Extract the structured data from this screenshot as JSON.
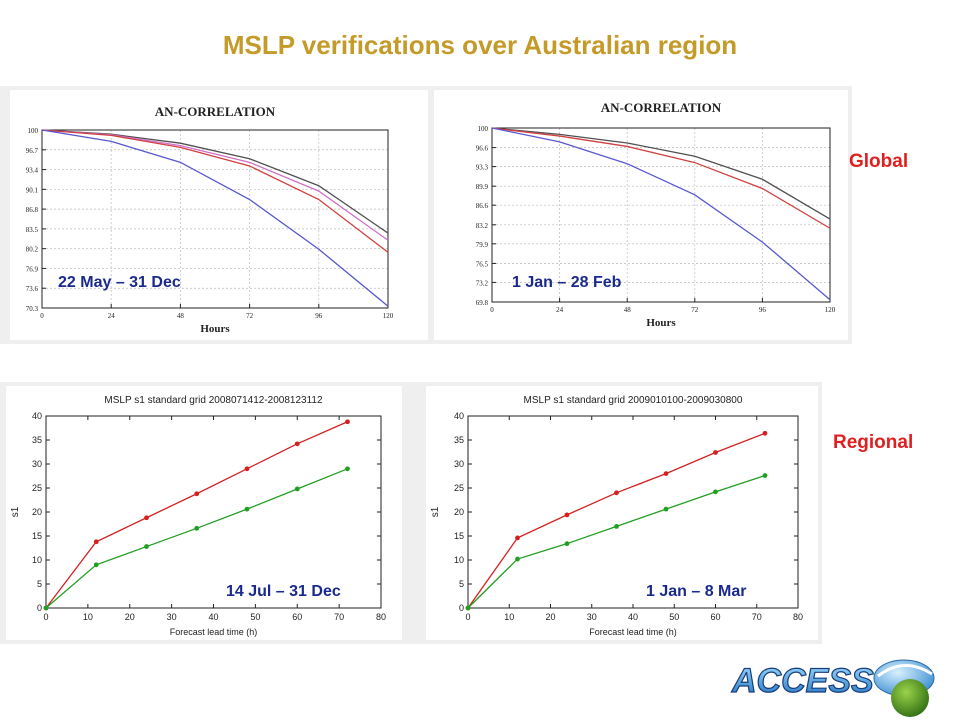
{
  "slide": {
    "title": "MSLP verifications over Australian region",
    "global_label": "Global",
    "regional_label": "Regional",
    "logo_text": "ACCESS"
  },
  "colors": {
    "title": "#c49a28",
    "label": "#e02020",
    "caption": "#1a2a8c",
    "series_black": "#505050",
    "series_red": "#d04040",
    "series_magenta": "#d070c8",
    "series_blue": "#5858d0",
    "series_regional_red": "#d42020",
    "series_regional_green": "#20a020"
  },
  "chart_data": [
    {
      "type": "line",
      "title": "AN-CORRELATION",
      "xlabel": "Hours",
      "ylabel": "",
      "caption": "22 May – 31 Dec",
      "x": [
        0,
        24,
        48,
        72,
        96,
        120
      ],
      "xlim": [
        0,
        120
      ],
      "ylim": [
        70.3,
        100
      ],
      "yticks": [
        "100",
        "96.7",
        "93.4",
        "90.1",
        "86.8",
        "83.5",
        "80.2",
        "76.9",
        "73.6",
        "70.3"
      ],
      "yticks_values": [
        100,
        96.7,
        93.4,
        90.1,
        86.8,
        83.5,
        80.2,
        76.9,
        73.6,
        70.3
      ],
      "xticks": [
        "0",
        "24",
        "48",
        "72",
        "96",
        "120"
      ],
      "grid": true,
      "series": [
        {
          "color": "#505050",
          "values": [
            100,
            99.3,
            97.8,
            95.2,
            90.7,
            82.8
          ]
        },
        {
          "color": "#d070c8",
          "values": [
            100,
            99.2,
            97.4,
            94.6,
            89.8,
            81.6
          ]
        },
        {
          "color": "#d04040",
          "values": [
            100,
            99.1,
            97.1,
            94.0,
            88.4,
            79.6
          ]
        },
        {
          "color": "#5858d0",
          "values": [
            100,
            98.1,
            94.6,
            88.4,
            80.1,
            70.6
          ]
        }
      ]
    },
    {
      "type": "line",
      "title": "AN-CORRELATION",
      "xlabel": "Hours",
      "ylabel": "",
      "caption": "1 Jan  – 28 Feb",
      "x": [
        0,
        24,
        48,
        72,
        96,
        120
      ],
      "xlim": [
        0,
        120
      ],
      "ylim": [
        69.8,
        100
      ],
      "yticks": [
        "100",
        "96.6",
        "93.3",
        "89.9",
        "86.6",
        "83.2",
        "79.9",
        "76.5",
        "73.2",
        "69.8"
      ],
      "yticks_values": [
        100,
        96.6,
        93.3,
        89.9,
        86.6,
        83.2,
        79.9,
        76.5,
        73.2,
        69.8
      ],
      "xticks": [
        "0",
        "24",
        "48",
        "72",
        "96",
        "120"
      ],
      "grid": true,
      "series": [
        {
          "color": "#505050",
          "values": [
            100,
            98.9,
            97.4,
            95.1,
            91.1,
            84.2
          ]
        },
        {
          "color": "#d04040",
          "values": [
            100,
            98.6,
            96.8,
            94.0,
            89.5,
            82.6
          ]
        },
        {
          "color": "#5858d0",
          "values": [
            100,
            97.6,
            93.8,
            88.4,
            80.2,
            70.2
          ]
        }
      ]
    },
    {
      "type": "line",
      "title": "MSLP s1 standard grid 2008071412-2008123112",
      "xlabel": "Forecast lead time (h)",
      "ylabel": "s1",
      "caption": "14 Jul  – 31 Dec",
      "x": [
        0,
        12,
        24,
        36,
        48,
        60,
        72
      ],
      "xlim": [
        0,
        80
      ],
      "ylim": [
        0,
        40
      ],
      "xticks": [
        "0",
        "10",
        "20",
        "30",
        "40",
        "50",
        "60",
        "70",
        "80"
      ],
      "xticks_values": [
        0,
        10,
        20,
        30,
        40,
        50,
        60,
        70,
        80
      ],
      "yticks": [
        "0",
        "5",
        "10",
        "15",
        "20",
        "25",
        "30",
        "35",
        "40"
      ],
      "yticks_values": [
        0,
        5,
        10,
        15,
        20,
        25,
        30,
        35,
        40
      ],
      "grid": false,
      "series": [
        {
          "color": "#d42020",
          "values": [
            0,
            13.8,
            18.8,
            23.8,
            29.0,
            34.2,
            38.8
          ]
        },
        {
          "color": "#20a020",
          "values": [
            0,
            9.0,
            12.8,
            16.6,
            20.6,
            24.8,
            29.0
          ]
        }
      ]
    },
    {
      "type": "line",
      "title": "MSLP s1 standard grid 2009010100-2009030800",
      "xlabel": "Forecast lead time (h)",
      "ylabel": "s1",
      "caption": "1 Jan  – 8 Mar",
      "x": [
        0,
        12,
        24,
        36,
        48,
        60,
        72
      ],
      "xlim": [
        0,
        80
      ],
      "ylim": [
        0,
        40
      ],
      "xticks": [
        "0",
        "10",
        "20",
        "30",
        "40",
        "50",
        "60",
        "70",
        "80"
      ],
      "xticks_values": [
        0,
        10,
        20,
        30,
        40,
        50,
        60,
        70,
        80
      ],
      "yticks": [
        "0",
        "5",
        "10",
        "15",
        "20",
        "25",
        "30",
        "35",
        "40"
      ],
      "yticks_values": [
        0,
        5,
        10,
        15,
        20,
        25,
        30,
        35,
        40
      ],
      "grid": false,
      "series": [
        {
          "color": "#d42020",
          "values": [
            0,
            14.6,
            19.4,
            24.0,
            28.0,
            32.4,
            36.4
          ]
        },
        {
          "color": "#20a020",
          "values": [
            0,
            10.2,
            13.4,
            17.0,
            20.6,
            24.2,
            27.6
          ]
        }
      ]
    }
  ]
}
